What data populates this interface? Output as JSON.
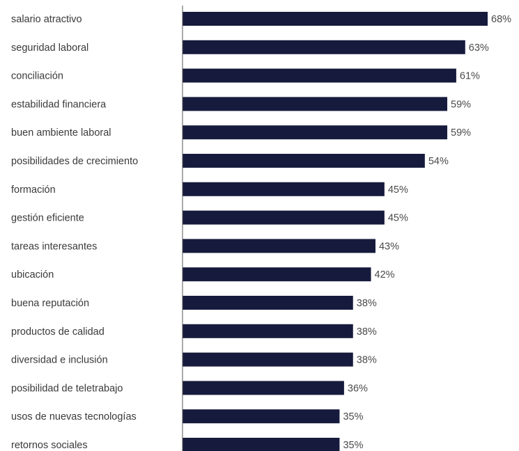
{
  "chart_data": {
    "type": "bar",
    "orientation": "horizontal",
    "categories": [
      "salario atractivo",
      "seguridad laboral",
      "conciliación",
      "estabilidad financiera",
      "buen ambiente laboral",
      "posibilidades de crecimiento",
      "formación",
      "gestión eficiente",
      "tareas interesantes",
      "ubicación",
      "buena reputación",
      "productos de calidad",
      "diversidad e inclusión",
      "posibilidad de teletrabajo",
      "usos de nuevas tecnologías",
      "retornos sociales"
    ],
    "values": [
      68,
      63,
      61,
      59,
      59,
      54,
      45,
      45,
      43,
      42,
      38,
      38,
      38,
      36,
      35,
      35
    ],
    "value_labels": [
      "68%",
      "63%",
      "61%",
      "59%",
      "59%",
      "54%",
      "45%",
      "45%",
      "43%",
      "42%",
      "38%",
      "38%",
      "38%",
      "36%",
      "35%",
      "35%"
    ],
    "unit": "%",
    "xlim": [
      0,
      70
    ],
    "grid": false,
    "legend": "none",
    "bar_color": "#161b3d",
    "axis_color": "#555555"
  }
}
